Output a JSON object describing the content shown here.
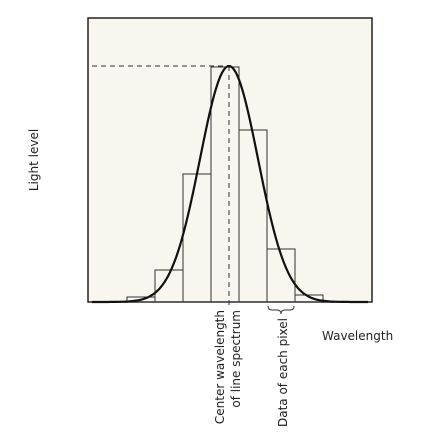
{
  "axis_labels": {
    "y": "Light level",
    "x": "Wavelength"
  },
  "annotations": {
    "center_line1": "Center wavelength",
    "center_line2": "of line spectrum",
    "pixel": "Data of each pixel"
  }
}
